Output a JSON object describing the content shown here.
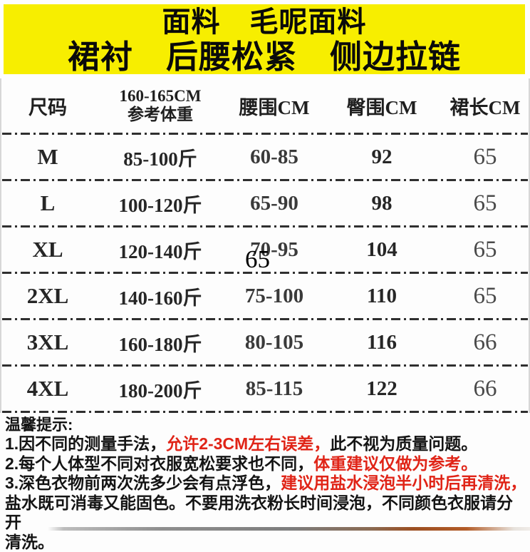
{
  "banner": {
    "line1": "面料　毛呢面料",
    "line2": "裙衬　后腰松紧　侧边拉链"
  },
  "table": {
    "headers": {
      "size": "尺码",
      "weight_line1": "160-165CM",
      "weight_line2": "参考体重",
      "waist": "腰围CM",
      "hip": "臀围CM",
      "length": "裙长CM"
    },
    "rows": [
      {
        "size": "M",
        "weight": "85-100斤",
        "waist": "60-85",
        "hip": "92",
        "length": "65"
      },
      {
        "size": "L",
        "weight": "100-120斤",
        "waist": "65-90",
        "hip": "98",
        "length": "65"
      },
      {
        "size": "XL",
        "weight": "120-140斤",
        "waist": "70-95",
        "hip": "104",
        "length": "65"
      },
      {
        "size": "2XL",
        "weight": "140-160斤",
        "waist": "75-100",
        "hip": "110",
        "length": "65"
      },
      {
        "size": "3XL",
        "weight": "160-180斤",
        "waist": "80-105",
        "hip": "116",
        "length": "66"
      },
      {
        "size": "4XL",
        "weight": "180-200斤",
        "waist": "85-115",
        "hip": "122",
        "length": "66"
      }
    ],
    "stray_overlay_text": "65"
  },
  "tips": {
    "heading": "温馨提示:",
    "lines": [
      {
        "segments": [
          {
            "text": "1.因不同的测量手法，"
          },
          {
            "text": "允许2-3CM左右误差，"
          },
          {
            "text": "此不视为质量问题。"
          }
        ]
      },
      {
        "segments": [
          {
            "text": "2.每个人体型不同对衣服宽松要求也不同，"
          },
          {
            "text": "体重建议仅做为参考。"
          }
        ]
      },
      {
        "segments": [
          {
            "text": "3.深色衣物前两次洗多少会有点浮色，"
          },
          {
            "text": "建议用盐水浸泡半小时后再清洗，"
          }
        ]
      },
      {
        "segments": [
          {
            "text": "盐水既可消毒又能固色。不要用洗衣粉长时间浸泡，不同颜色衣服请分开"
          }
        ]
      },
      {
        "segments": [
          {
            "text": "清洗。"
          }
        ]
      }
    ]
  },
  "colors": {
    "banner_bg": "#f7ee00",
    "warning_red": "#e02417",
    "text_black": "#141414"
  }
}
